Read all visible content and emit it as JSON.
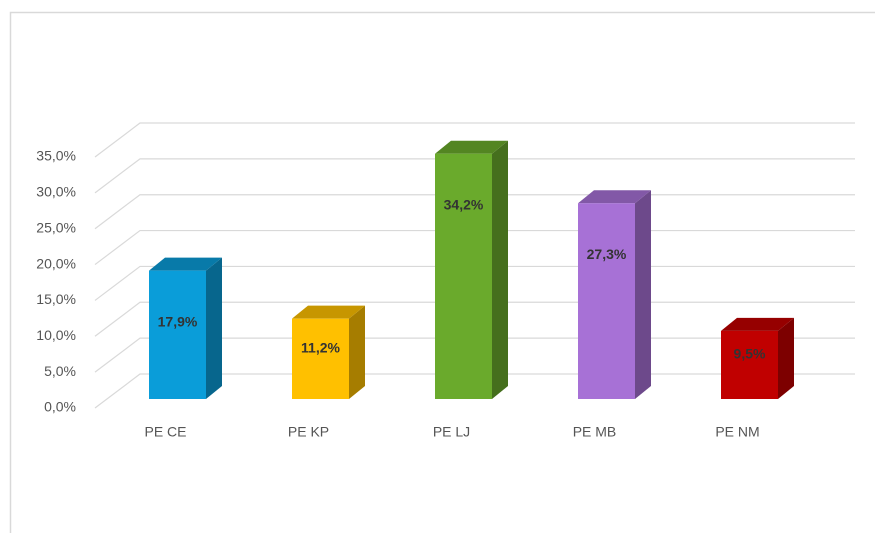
{
  "chart_data": {
    "type": "bar3d",
    "categories": [
      "PE CE",
      "PE KP",
      "PE LJ",
      "PE MB",
      "PE NM"
    ],
    "values": [
      17.9,
      11.2,
      34.2,
      27.3,
      9.5
    ],
    "value_labels": [
      "17,9%",
      "11,2%",
      "34,2%",
      "27,3%",
      "9,5%"
    ],
    "colors": [
      "#0a9dd9",
      "#ffc000",
      "#6aaa2c",
      "#a771d6",
      "#c00000"
    ],
    "ylim": [
      0,
      35
    ],
    "yticks": [
      {
        "value": 0,
        "label": "0,0%"
      },
      {
        "value": 5,
        "label": "5,0%"
      },
      {
        "value": 10,
        "label": "10,0%"
      },
      {
        "value": 15,
        "label": "15,0%"
      },
      {
        "value": 20,
        "label": "20,0%"
      },
      {
        "value": 25,
        "label": "25,0%"
      },
      {
        "value": 30,
        "label": "30,0%"
      },
      {
        "value": 35,
        "label": "35,0%"
      }
    ],
    "grid": true
  }
}
